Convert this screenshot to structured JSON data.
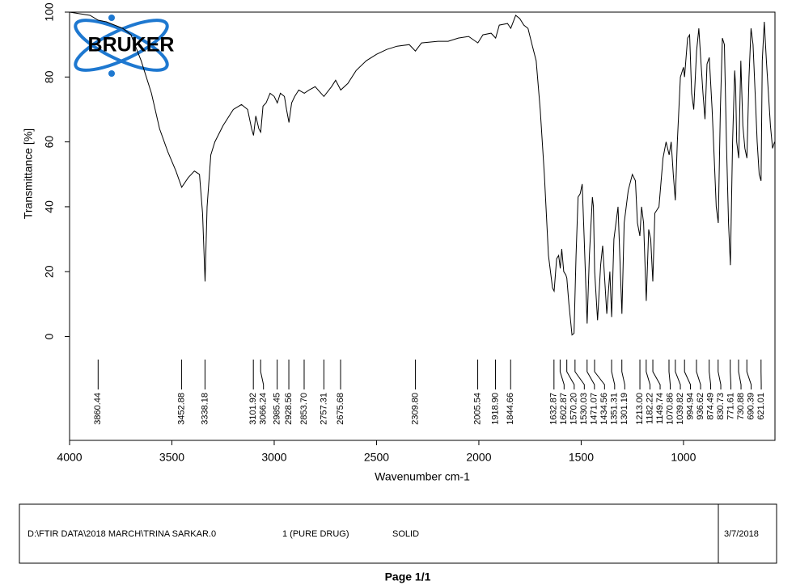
{
  "chart_data": {
    "type": "line",
    "logo": "BRUKER",
    "x_label": "Wavenumber cm-1",
    "y_label": "Transmittance [%]",
    "xlim": [
      4000,
      553
    ],
    "ylim": [
      -32,
      100
    ],
    "xticks": [
      4000,
      3500,
      3000,
      2500,
      2000,
      1500,
      1000
    ],
    "yticks": [
      0,
      20,
      40,
      60,
      80,
      100
    ],
    "color": "#000000",
    "x": [
      4000,
      3950,
      3900,
      3860,
      3820,
      3780,
      3740,
      3700,
      3650,
      3600,
      3560,
      3520,
      3480,
      3452,
      3420,
      3390,
      3365,
      3350,
      3338,
      3328,
      3310,
      3290,
      3250,
      3200,
      3160,
      3130,
      3110,
      3101,
      3090,
      3075,
      3066,
      3055,
      3040,
      3020,
      3000,
      2985,
      2970,
      2950,
      2940,
      2928,
      2915,
      2900,
      2880,
      2853,
      2830,
      2800,
      2757,
      2720,
      2700,
      2675,
      2640,
      2600,
      2550,
      2500,
      2450,
      2400,
      2340,
      2310,
      2280,
      2200,
      2150,
      2100,
      2050,
      2005,
      1980,
      1940,
      1918,
      1900,
      1860,
      1844,
      1820,
      1800,
      1780,
      1760,
      1740,
      1720,
      1700,
      1680,
      1660,
      1640,
      1632,
      1620,
      1610,
      1602,
      1595,
      1585,
      1575,
      1570,
      1560,
      1545,
      1535,
      1525,
      1515,
      1505,
      1495,
      1485,
      1471,
      1460,
      1445,
      1440,
      1434,
      1420,
      1405,
      1395,
      1375,
      1360,
      1351,
      1340,
      1320,
      1301,
      1290,
      1270,
      1250,
      1235,
      1225,
      1213,
      1205,
      1195,
      1182,
      1170,
      1160,
      1150,
      1140,
      1120,
      1100,
      1085,
      1070,
      1060,
      1050,
      1040,
      1030,
      1015,
      1000,
      995,
      980,
      970,
      960,
      950,
      936,
      925,
      915,
      905,
      895,
      885,
      874,
      860,
      850,
      840,
      830,
      820,
      810,
      800,
      790,
      780,
      771,
      760,
      750,
      745,
      740,
      730,
      720,
      710,
      700,
      690,
      680,
      670,
      660,
      650,
      640,
      630,
      621,
      615,
      605,
      595,
      585,
      575,
      565,
      555
    ],
    "values": [
      100,
      99.5,
      99,
      97.5,
      97,
      96,
      95,
      93,
      85,
      75,
      64,
      57,
      51,
      46,
      49,
      51,
      50,
      38,
      17,
      40,
      56,
      60,
      65,
      70,
      71.5,
      70,
      64,
      62,
      68,
      64,
      63,
      71,
      72,
      75,
      74,
      72,
      75,
      74,
      70,
      66,
      72,
      74,
      76,
      75,
      76,
      77,
      74,
      77,
      79,
      76,
      78,
      82,
      85,
      87,
      88.5,
      89.5,
      90,
      88,
      90.5,
      91,
      91,
      92,
      92.5,
      90.5,
      93,
      93.5,
      92,
      96,
      96.5,
      95,
      99,
      98,
      96,
      95,
      90,
      85,
      70,
      50,
      25,
      15,
      14,
      24,
      25,
      21,
      27,
      20,
      19,
      18,
      10,
      0.5,
      1,
      25,
      43,
      44,
      47,
      30,
      4,
      25,
      43,
      40,
      20,
      5,
      22,
      28,
      7,
      20,
      6,
      30,
      40,
      7,
      35,
      45,
      50,
      48,
      35,
      31,
      40,
      35,
      11,
      33,
      30,
      17,
      38,
      40,
      55,
      60,
      56,
      60,
      50,
      42,
      60,
      80,
      83,
      80,
      92,
      93,
      75,
      70,
      88,
      95,
      85,
      75,
      67,
      84,
      86,
      70,
      55,
      40,
      35,
      70,
      92,
      90,
      60,
      35,
      22,
      60,
      82,
      77,
      60,
      55,
      85,
      65,
      58,
      55,
      80,
      95,
      90,
      75,
      60,
      50,
      48,
      85,
      97,
      85,
      75,
      65,
      58,
      60
    ],
    "peaks": [
      3860.44,
      3452.88,
      3338.18,
      3101.92,
      3066.24,
      2985.45,
      2928.56,
      {
        "value": 2853.7,
        "label": "2853.70"
      },
      2757.31,
      2675.68,
      {
        "value": 2309.8,
        "label": "2309.80"
      },
      2005.54,
      {
        "value": 1918.9,
        "label": "1918.90"
      },
      1844.66,
      1632.87,
      1602.87,
      {
        "value": 1570.2,
        "label": "1570.20"
      },
      1530.03,
      1471.07,
      1434.56,
      1351.31,
      1301.19,
      {
        "value": 1213,
        "label": "1213.00"
      },
      1182.22,
      1149.74,
      1070.86,
      1039.82,
      994.94,
      936.62,
      874.49,
      830.73,
      771.61,
      730.88,
      690.39,
      621.01
    ]
  },
  "footer": {
    "file": "D:\\FTIR DATA\\2018 MARCH\\TRINA SARKAR.0",
    "sample": "1 (PURE DRUG)",
    "state": "SOLID",
    "date": "3/7/2018",
    "page": "Page 1/1"
  }
}
